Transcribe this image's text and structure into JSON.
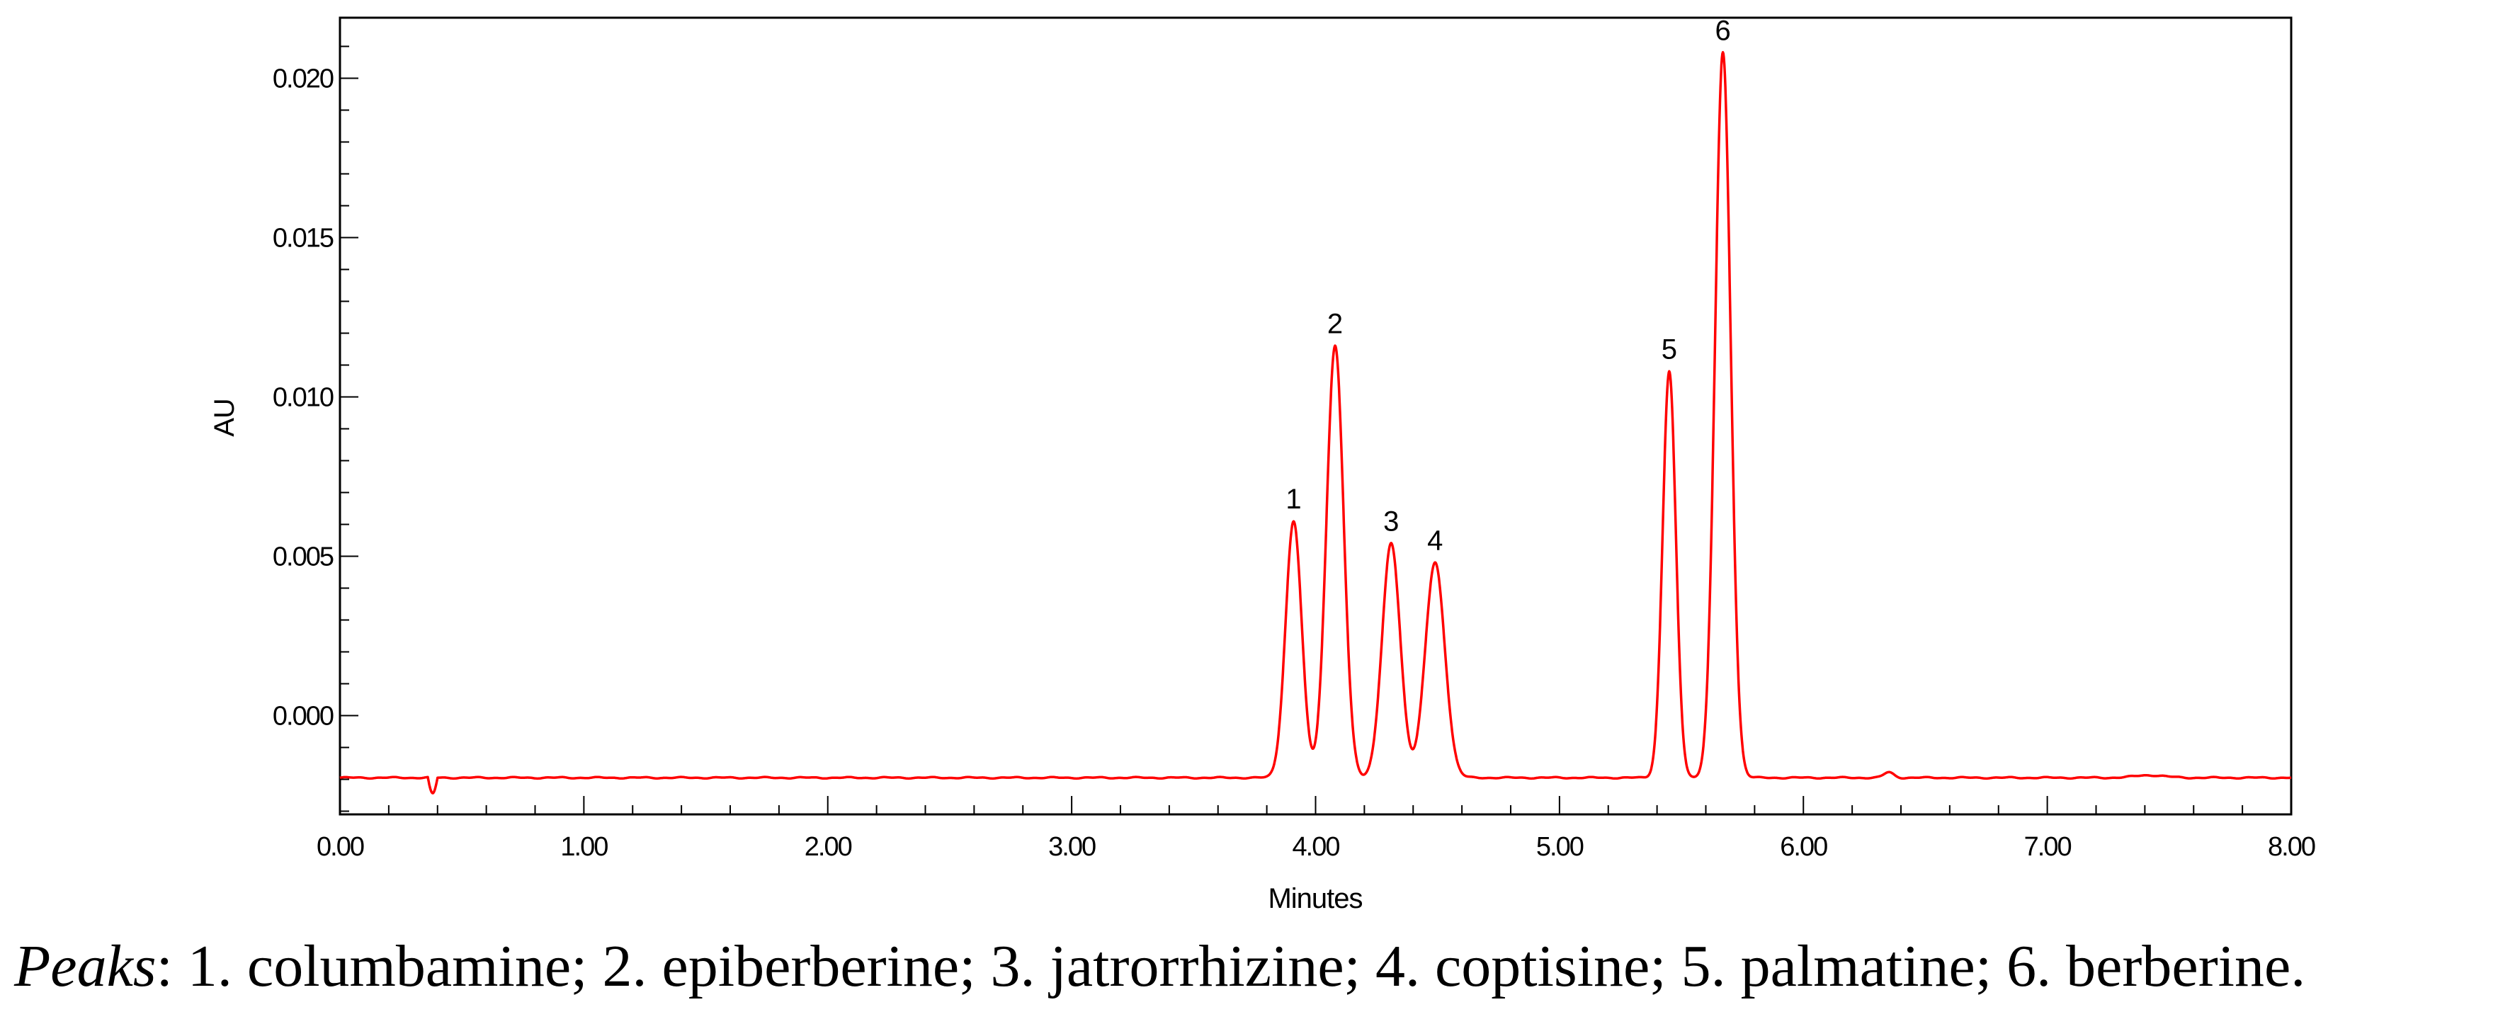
{
  "chart_data": {
    "type": "line",
    "xlabel": "Minutes",
    "ylabel": "AU",
    "xlim": [
      0.0,
      8.0
    ],
    "ylim": [
      -0.0031,
      0.0219
    ],
    "x_ticks": [
      "0.00",
      "1.00",
      "2.00",
      "3.00",
      "4.00",
      "5.00",
      "6.00",
      "7.00",
      "8.00"
    ],
    "y_ticks": [
      "0.000",
      "0.005",
      "0.010",
      "0.015",
      "0.020"
    ],
    "line_color": "#ff0000",
    "baseline": -0.00195,
    "peaks": [
      {
        "label": "1",
        "x": 3.91,
        "y": 0.0061
      },
      {
        "label": "2",
        "x": 4.08,
        "y": 0.0116
      },
      {
        "label": "3",
        "x": 4.31,
        "y": 0.0054
      },
      {
        "label": "4",
        "x": 4.49,
        "y": 0.0048
      },
      {
        "label": "5",
        "x": 5.45,
        "y": 0.0108
      },
      {
        "label": "6",
        "x": 5.67,
        "y": 0.0208
      }
    ],
    "grid": false,
    "legend": "none"
  },
  "caption": {
    "label": "Peaks",
    "text": ": 1. columbamine; 2. epiberberine; 3. jatrorrhizine; 4. coptisine; 5. palmatine; 6. berberine."
  }
}
